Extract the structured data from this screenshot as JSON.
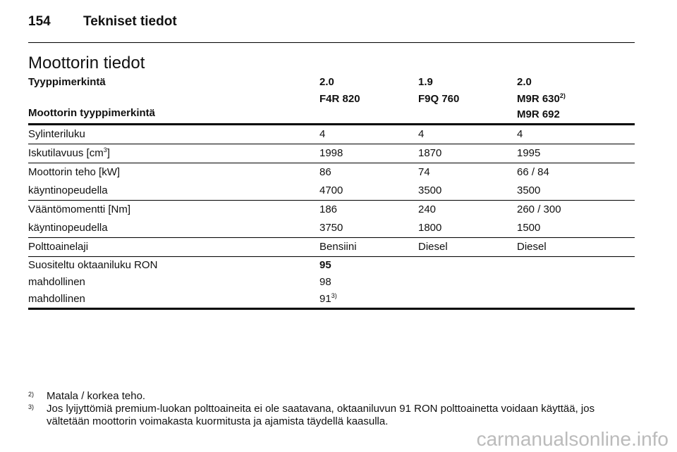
{
  "header": {
    "page_number": "154",
    "title": "Tekniset tiedot"
  },
  "section_title": "Moottorin tiedot",
  "table": {
    "type_label": "Tyyppimerkintä",
    "type_values": [
      "2.0",
      "1.9",
      "2.0"
    ],
    "engine_label": "Moottorin tyyppimerkintä",
    "engine_codes": [
      {
        "text": "F4R 820"
      },
      {
        "text": "F9Q 760"
      },
      {
        "text": "M9R 630",
        "sup": "2)",
        "second": "M9R 692"
      }
    ],
    "groups": [
      [
        {
          "label": "Sylinteriluku",
          "values": [
            "4",
            "4",
            "4"
          ]
        }
      ],
      [
        {
          "label": "Iskutilavuus [cm",
          "label_sup": "3",
          "label_after": "]",
          "values": [
            "1998",
            "1870",
            "1995"
          ]
        }
      ],
      [
        {
          "label": "Moottorin teho [kW]",
          "values": [
            "86",
            "74",
            "66 / 84"
          ]
        },
        {
          "label": "käyntinopeudella",
          "values": [
            "4700",
            "3500",
            "3500"
          ]
        }
      ],
      [
        {
          "label": "Vääntömomentti [Nm]",
          "values": [
            "186",
            "240",
            "260 / 300"
          ]
        },
        {
          "label": "käyntinopeudella",
          "values": [
            "3750",
            "1800",
            "1500"
          ]
        }
      ],
      [
        {
          "label": "Polttoainelaji",
          "values": [
            "Bensiini",
            "Diesel",
            "Diesel"
          ]
        }
      ],
      [
        {
          "label": "Suositeltu oktaaniluku RON",
          "values": [
            "95"
          ],
          "bold": true
        },
        {
          "label": "mahdollinen",
          "values": [
            "98"
          ]
        },
        {
          "label": "mahdollinen",
          "values": [
            "91"
          ],
          "value_sup": "3)"
        }
      ]
    ]
  },
  "footnotes": [
    {
      "mark": "2)",
      "text": "Matala / korkea teho."
    },
    {
      "mark": "3)",
      "text": "Jos lyijyttömiä premium-luokan polttoaineita ei ole saatavana, oktaaniluvun 91 RON polttoainetta voidaan käyttää, jos vältetään moottorin voimakasta kuormitusta ja ajamista täydellä kaasulla."
    }
  ],
  "watermark": "carmanualsonline.info"
}
